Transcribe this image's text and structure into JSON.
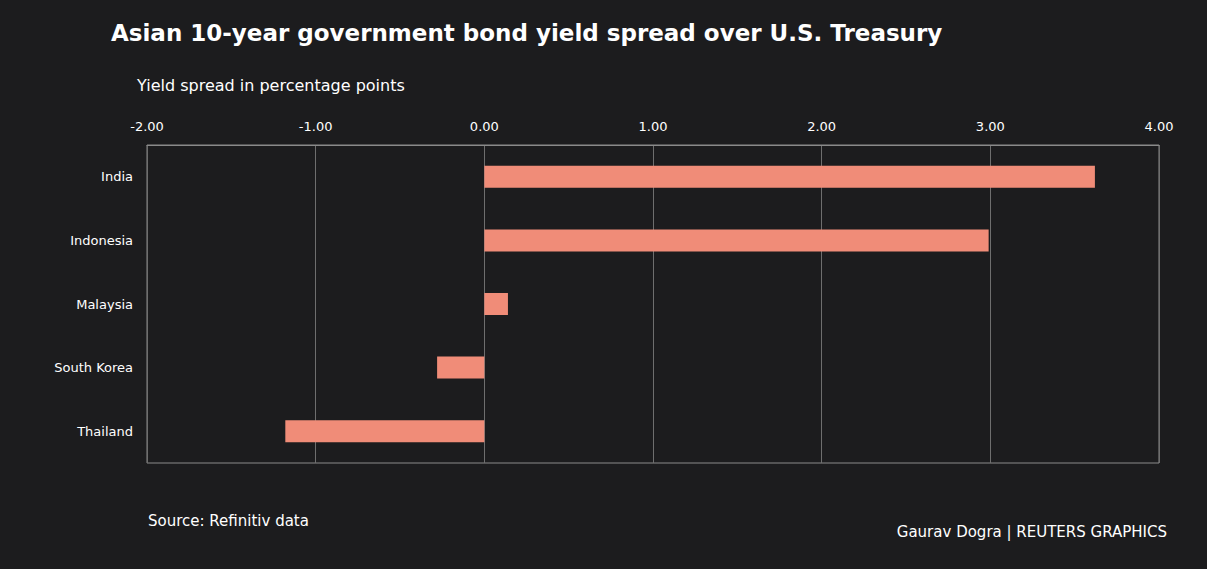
{
  "chart_data": {
    "type": "bar",
    "orientation": "horizontal",
    "title": "Asian 10-year government bond yield spread over U.S. Treasury",
    "subtitle": "Yield spread in percentage points",
    "source": "Source: Refinitiv data",
    "credit": "Gaurav Dogra | REUTERS GRAPHICS",
    "categories": [
      "India",
      "Indonesia",
      "Malaysia",
      "South Korea",
      "Thailand"
    ],
    "values": [
      3.62,
      2.99,
      0.14,
      -0.28,
      -1.18
    ],
    "color": "#f08c78",
    "xlim": [
      -2,
      4
    ],
    "xticks": [
      {
        "value": -2,
        "label": "-2.00"
      },
      {
        "value": -1,
        "label": "-1.00"
      },
      {
        "value": 0,
        "label": "0.00"
      },
      {
        "value": 1,
        "label": "1.00"
      },
      {
        "value": 2,
        "label": "2.00"
      },
      {
        "value": 3,
        "label": "3.00"
      },
      {
        "value": 4,
        "label": "4.00"
      }
    ],
    "grid": true
  }
}
